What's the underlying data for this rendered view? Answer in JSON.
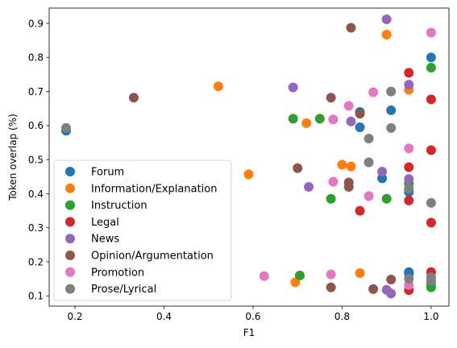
{
  "chart_data": {
    "type": "scatter",
    "xlabel": "F1",
    "ylabel": "Token overlap (%)",
    "xlim": [
      0.142,
      1.04
    ],
    "ylim": [
      0.07,
      0.945
    ],
    "x_ticks": [
      0.2,
      0.4,
      0.6,
      0.8,
      1.0
    ],
    "x_tick_labels": [
      "0.2",
      "0.4",
      "0.6",
      "0.8",
      "1.0"
    ],
    "y_ticks": [
      0.1,
      0.2,
      0.3,
      0.4,
      0.5,
      0.6,
      0.7,
      0.8,
      0.9
    ],
    "y_tick_labels": [
      "0.1",
      "0.2",
      "0.3",
      "0.4",
      "0.5",
      "0.6",
      "0.7",
      "0.8",
      "0.9"
    ],
    "grid": false,
    "legend_position": "lower-left",
    "series": [
      {
        "name": "Forum",
        "color": "#1f77b4",
        "points": [
          [
            0.18,
            0.585
          ],
          [
            0.84,
            0.64
          ],
          [
            0.84,
            0.595
          ],
          [
            0.89,
            0.445
          ],
          [
            0.91,
            0.645
          ],
          [
            0.95,
            0.405
          ],
          [
            0.95,
            0.165
          ],
          [
            0.95,
            0.17
          ],
          [
            1.0,
            0.8
          ]
        ]
      },
      {
        "name": "Information/Explanation",
        "color": "#ff7f0e",
        "points": [
          [
            0.522,
            0.715
          ],
          [
            0.59,
            0.457
          ],
          [
            0.695,
            0.14
          ],
          [
            0.72,
            0.607
          ],
          [
            0.8,
            0.485
          ],
          [
            0.82,
            0.48
          ],
          [
            0.84,
            0.167
          ],
          [
            0.9,
            0.867
          ],
          [
            0.95,
            0.705
          ]
        ]
      },
      {
        "name": "Instruction",
        "color": "#2ca02c",
        "points": [
          [
            0.69,
            0.62
          ],
          [
            0.705,
            0.16
          ],
          [
            0.75,
            0.62
          ],
          [
            0.775,
            0.385
          ],
          [
            0.9,
            0.385
          ],
          [
            0.95,
            0.43
          ],
          [
            1.0,
            0.77
          ],
          [
            1.0,
            0.125
          ],
          [
            1.0,
            0.135
          ]
        ]
      },
      {
        "name": "Legal",
        "color": "#d62728",
        "points": [
          [
            0.84,
            0.35
          ],
          [
            0.95,
            0.755
          ],
          [
            0.95,
            0.478
          ],
          [
            0.95,
            0.38
          ],
          [
            0.95,
            0.117
          ],
          [
            1.0,
            0.677
          ],
          [
            1.0,
            0.528
          ],
          [
            1.0,
            0.315
          ],
          [
            1.0,
            0.17
          ]
        ]
      },
      {
        "name": "News",
        "color": "#9467bd",
        "points": [
          [
            0.69,
            0.712
          ],
          [
            0.725,
            0.42
          ],
          [
            0.82,
            0.612
          ],
          [
            0.89,
            0.465
          ],
          [
            0.9,
            0.912
          ],
          [
            0.9,
            0.118
          ],
          [
            0.91,
            0.107
          ],
          [
            0.95,
            0.72
          ],
          [
            0.95,
            0.443
          ]
        ]
      },
      {
        "name": "Opinion/Argumentation",
        "color": "#8c564b",
        "points": [
          [
            0.332,
            0.682
          ],
          [
            0.7,
            0.475
          ],
          [
            0.775,
            0.682
          ],
          [
            0.775,
            0.125
          ],
          [
            0.815,
            0.433
          ],
          [
            0.815,
            0.42
          ],
          [
            0.82,
            0.887
          ],
          [
            0.84,
            0.635
          ],
          [
            0.87,
            0.12
          ],
          [
            0.91,
            0.148
          ]
        ]
      },
      {
        "name": "Promotion",
        "color": "#e377c2",
        "points": [
          [
            0.625,
            0.158
          ],
          [
            0.775,
            0.163
          ],
          [
            0.78,
            0.618
          ],
          [
            0.78,
            0.435
          ],
          [
            0.815,
            0.658
          ],
          [
            0.86,
            0.393
          ],
          [
            0.87,
            0.698
          ],
          [
            0.95,
            0.533
          ],
          [
            0.95,
            0.132
          ],
          [
            1.0,
            0.873
          ]
        ]
      },
      {
        "name": "Prose/Lyrical",
        "color": "#7f7f7f",
        "points": [
          [
            0.18,
            0.593
          ],
          [
            0.86,
            0.562
          ],
          [
            0.86,
            0.492
          ],
          [
            0.91,
            0.7
          ],
          [
            0.91,
            0.593
          ],
          [
            0.95,
            0.415
          ],
          [
            0.95,
            0.15
          ],
          [
            1.0,
            0.373
          ],
          [
            1.0,
            0.155
          ],
          [
            1.0,
            0.145
          ]
        ]
      }
    ]
  }
}
